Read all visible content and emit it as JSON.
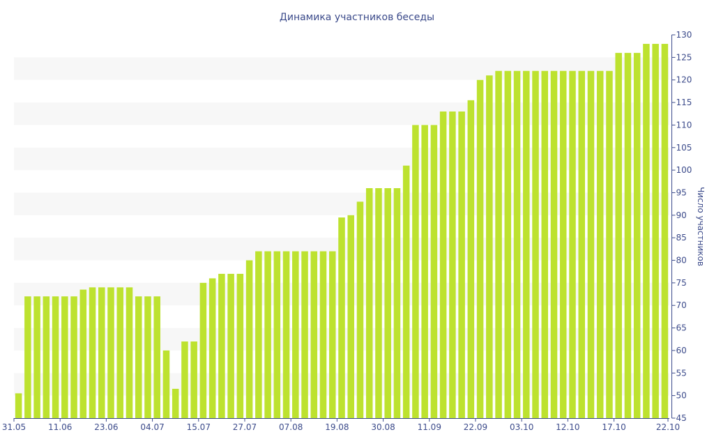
{
  "chart_data": {
    "type": "bar",
    "title": "Динамика участников беседы",
    "xlabel": "",
    "ylabel": "Число участников",
    "ylim": [
      45,
      130
    ],
    "y_ticks": [
      45,
      50,
      55,
      60,
      65,
      70,
      75,
      80,
      85,
      90,
      95,
      100,
      105,
      110,
      115,
      120,
      125,
      130
    ],
    "y_axis_side": "right",
    "grid": "alternating horizontal bands",
    "bar_color": "#bde22f",
    "band_color": "#f7f7f7",
    "axis_color": "#3b4a8a",
    "x_tick_labels": [
      "31.05",
      "11.06",
      "23.06",
      "04.07",
      "15.07",
      "27.07",
      "07.08",
      "19.08",
      "30.08",
      "11.09",
      "22.09",
      "03.10",
      "12.10",
      "17.10",
      "22.10"
    ],
    "x_tick_positions": [
      0,
      5,
      10,
      15,
      20,
      25,
      30,
      35,
      40,
      45,
      50,
      55,
      60,
      65,
      70
    ],
    "values": [
      50.5,
      72,
      72,
      72,
      72,
      72,
      72,
      73.5,
      74,
      74,
      74,
      74,
      74,
      72,
      72,
      72,
      60,
      51.5,
      62,
      62,
      75,
      76,
      77,
      77,
      77,
      80,
      82,
      82,
      82,
      82,
      82,
      82,
      82,
      82,
      82,
      89.5,
      90,
      93,
      96,
      96,
      96,
      96,
      101,
      110,
      110,
      110,
      113,
      113,
      113,
      115.5,
      120,
      121,
      122,
      122,
      122,
      122,
      122,
      122,
      122,
      122,
      122,
      122,
      122,
      122,
      122,
      126,
      126,
      126,
      128,
      128,
      128
    ]
  }
}
